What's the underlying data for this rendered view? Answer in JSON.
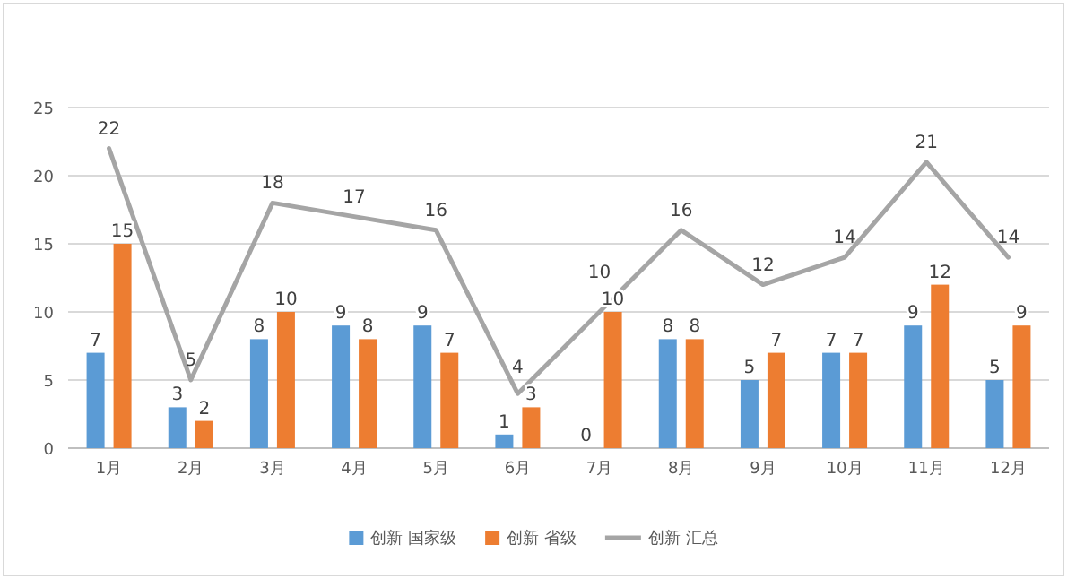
{
  "chart_data": {
    "type": "bar",
    "categories": [
      "1月",
      "2月",
      "3月",
      "4月",
      "5月",
      "6月",
      "7月",
      "8月",
      "9月",
      "10月",
      "11月",
      "12月"
    ],
    "series": [
      {
        "name": "创新 国家级",
        "color": "#5b9bd5",
        "values": [
          7,
          3,
          8,
          9,
          9,
          1,
          0,
          8,
          5,
          7,
          9,
          5
        ]
      },
      {
        "name": "创新 省级",
        "color": "#ed7d31",
        "values": [
          15,
          2,
          10,
          8,
          7,
          3,
          10,
          8,
          7,
          7,
          12,
          9
        ]
      },
      {
        "name": "创新 汇总",
        "type": "line",
        "color": "#a5a5a5",
        "values": [
          22,
          5,
          18,
          17,
          16,
          4,
          10,
          16,
          12,
          14,
          21,
          14
        ]
      }
    ],
    "ylim": [
      0,
      25
    ],
    "yticks": [
      0,
      5,
      10,
      15,
      20,
      25
    ],
    "grid": "y",
    "legend": "bottom",
    "data_labels": true,
    "marker": "none",
    "line_style": "solid"
  }
}
